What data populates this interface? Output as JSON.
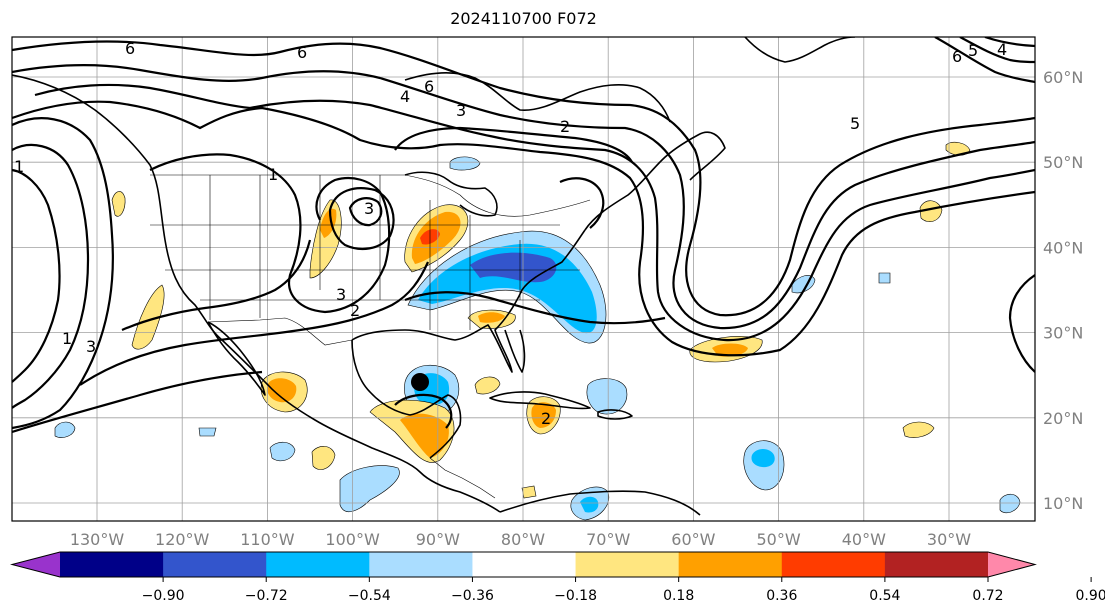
{
  "title": "2024110700 F072",
  "lon_labels": [
    "130°W",
    "120°W",
    "110°W",
    "100°W",
    "90°W",
    "80°W",
    "70°W",
    "60°W",
    "50°W",
    "40°W",
    "30°W"
  ],
  "lat_labels": [
    "60°N",
    "50°N",
    "40°N",
    "30°N",
    "20°N",
    "10°N"
  ],
  "colorbar": {
    "ticks": [
      "−0.90",
      "−0.72",
      "−0.54",
      "−0.36",
      "−0.18",
      "0.18",
      "0.36",
      "0.54",
      "0.72",
      "0.90"
    ],
    "colors": [
      "#9933cc",
      "#000088",
      "#3355cc",
      "#00bbff",
      "#aaddff",
      "#ffffff",
      "#ffe680",
      "#ffa000",
      "#ff3c00",
      "#b22222",
      "#ff88aa"
    ]
  },
  "contour_labels": [
    "6",
    "6",
    "6",
    "4",
    "3",
    "2",
    "5",
    "6",
    "4",
    "5",
    "3",
    "2",
    "1",
    "3",
    "1",
    "3",
    "1",
    "2"
  ],
  "marker": "storm-position-marker"
}
